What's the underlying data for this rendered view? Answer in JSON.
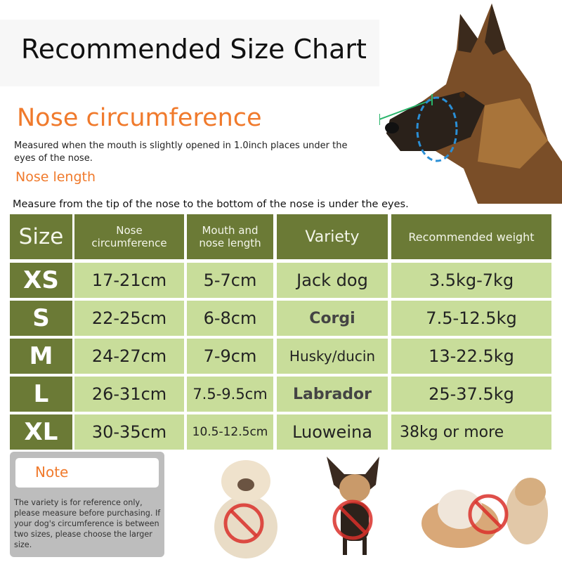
{
  "title": "Recommended Size Chart",
  "nose_circumference": {
    "heading": "Nose circumference",
    "description": "Measured when the mouth is slightly opened in 1.0inch places under the eyes of the nose."
  },
  "nose_length": {
    "heading": "Nose length",
    "description": "Measure from the tip of the nose to the bottom of the nose is under the eyes."
  },
  "table": {
    "headers": [
      "Size",
      "Nose circumference",
      "Mouth and nose length",
      "Variety",
      "Recommended weight"
    ],
    "rows": [
      [
        "XS",
        "17-21cm",
        "5-7cm",
        "Jack dog",
        "3.5kg-7kg"
      ],
      [
        "S",
        "22-25cm",
        "6-8cm",
        "Corgi",
        "7.5-12.5kg"
      ],
      [
        "M",
        "24-27cm",
        "7-9cm",
        "Husky/ducin",
        "13-22.5kg"
      ],
      [
        "L",
        "26-31cm",
        "7.5-9.5cm",
        "Labrador",
        "25-37.5kg"
      ],
      [
        "XL",
        "30-35cm",
        "10.5-12.5cm",
        "Luoweina",
        "38kg or more"
      ]
    ]
  },
  "note": {
    "label": "Note",
    "text": "The variety is for reference only, please measure before purchasing. If your dog's circumference is between two sizes, please choose the larger size."
  },
  "colors": {
    "accent_orange": "#f07a2c",
    "header_olive": "#6b7a36",
    "cell_green": "#c8dd9a",
    "prohibited_red": "#d9302a"
  },
  "icons": [
    "measure-line-icon",
    "prohibited-icon"
  ]
}
